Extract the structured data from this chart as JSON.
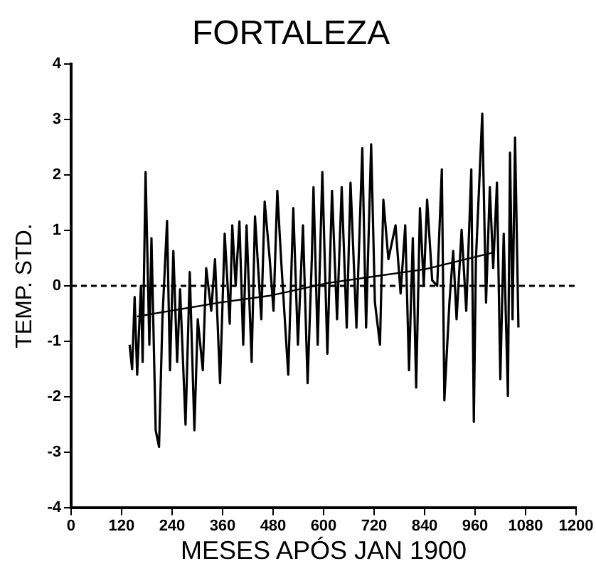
{
  "chart_data": {
    "type": "line",
    "title": "FORTALEZA",
    "xlabel": "MESES APÓS JAN 1900",
    "ylabel": "TEMP. STD.",
    "xlim": [
      0,
      1200
    ],
    "xticks": [
      0,
      120,
      240,
      360,
      480,
      600,
      720,
      840,
      960,
      1080,
      1200
    ],
    "ylim": [
      -4,
      4
    ],
    "yticks": [
      -4,
      -3,
      -2,
      -1,
      0,
      1,
      2,
      3,
      4
    ],
    "grid": false,
    "legend": false,
    "marker": "none",
    "line_style": "solid",
    "ref_lines": [
      {
        "axis": "y",
        "value": 0,
        "line_style": "dashed",
        "color": "#000000"
      }
    ],
    "series": [
      {
        "color": "#000000",
        "x": [
          139,
          145,
          151,
          157,
          166,
          170,
          177,
          186,
          191,
          201,
          209,
          217,
          228,
          235,
          243,
          252,
          259,
          272,
          282,
          293,
          301,
          313,
          321,
          333,
          342,
          354,
          365,
          377,
          383,
          391,
          400,
          409,
          417,
          429,
          437,
          452,
          460,
          472,
          481,
          490,
          499,
          516,
          528,
          539,
          551,
          562,
          572,
          576,
          586,
          597,
          609,
          620,
          632,
          643,
          655,
          664,
          678,
          692,
          701,
          713,
          722,
          734,
          742,
          754,
          771,
          783,
          794,
          803,
          812,
          820,
          829,
          838,
          846,
          858,
          870,
          881,
          887,
          899,
          908,
          916,
          928,
          939,
          951,
          957,
          962,
          970,
          977,
          986,
          995,
          1003,
          1012,
          1020,
          1028,
          1038,
          1043,
          1049,
          1055,
          1063
        ],
        "values": [
          -1.06,
          -1.5,
          -0.2,
          -1.6,
          0,
          -1.37,
          2.05,
          -1.06,
          0.86,
          -2.6,
          -2.9,
          -0.6,
          1.17,
          -1.52,
          0.63,
          -1.37,
          -0.06,
          -2.5,
          0.25,
          -2.6,
          -0.6,
          -1.52,
          0.32,
          -0.45,
          0.48,
          -1.75,
          0.94,
          -0.68,
          1.09,
          0,
          1.16,
          -1.06,
          1.09,
          -1.37,
          1.25,
          -0.6,
          1.52,
          0.48,
          -0.45,
          1.71,
          0.48,
          -1.6,
          1.4,
          -1.06,
          1.09,
          -1.75,
          0.48,
          1.78,
          -1.06,
          2.05,
          -1.22,
          1.71,
          -0.6,
          1.78,
          -0.75,
          1.86,
          -0.75,
          2.48,
          -0.75,
          2.55,
          -0.3,
          -1.06,
          1.55,
          0.48,
          1.09,
          -0.14,
          1.09,
          -1.52,
          0.86,
          -1.83,
          1.4,
          0,
          1.55,
          0.1,
          0,
          2.1,
          -2.06,
          -0.3,
          0.63,
          -0.6,
          1.01,
          -0.45,
          2.1,
          -2.45,
          0.48,
          1.86,
          3.1,
          -0.3,
          1.78,
          0.32,
          1.86,
          -1.68,
          0.94,
          -1.98,
          2.4,
          -0.6,
          2.67,
          -0.75
        ]
      },
      {
        "type": "line",
        "color": "#000000",
        "x": [
          157,
          354,
          470,
          609,
          841,
          1003
        ],
        "values": [
          -0.55,
          -0.3,
          -0.18,
          0.05,
          0.3,
          0.6
        ]
      }
    ]
  }
}
